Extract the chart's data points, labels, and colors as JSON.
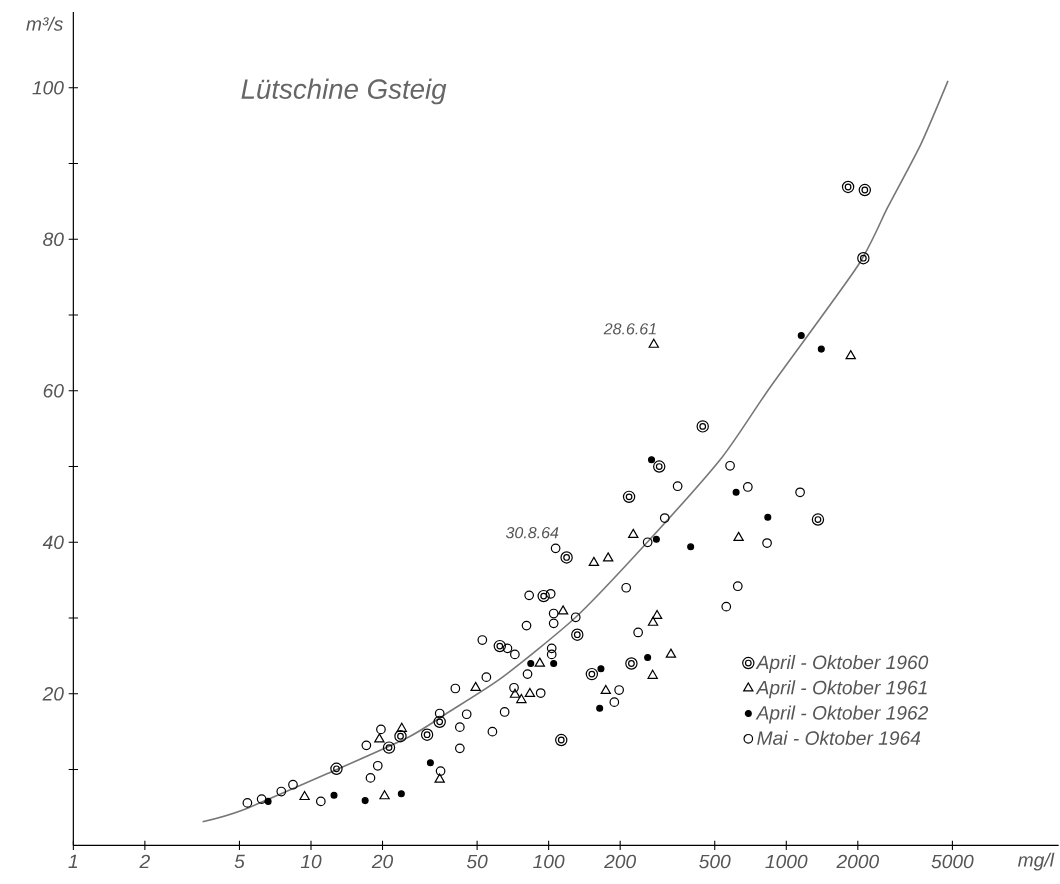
{
  "chart_data": {
    "type": "scatter",
    "title": "Lütschine  Gsteig",
    "xlabel": "mg/l",
    "ylabel": "m³/s",
    "log": "x",
    "xlim": [
      1,
      14000
    ],
    "ylim": [
      0,
      110
    ],
    "xticks": [
      1,
      2,
      5,
      10,
      20,
      50,
      100,
      200,
      500,
      1000,
      2000,
      5000
    ],
    "yticks": [
      {
        "value": 10,
        "label": null
      },
      20,
      {
        "value": 30,
        "label": null
      },
      40,
      {
        "value": 50,
        "label": null
      },
      60,
      {
        "value": 70,
        "label": null
      },
      80,
      {
        "value": 90,
        "label": null
      },
      100
    ],
    "legend": "bottom right",
    "annotations": [
      {
        "text": "30.8.64",
        "x": 107,
        "y": 39.2
      },
      {
        "text": "28.6.61",
        "x": 277,
        "y": 66.1
      }
    ],
    "series": [
      {
        "name": "April - Oktober  1960",
        "color": "#000000",
        "x": [
          12.8,
          21.3,
          23.8,
          30.8,
          34.8,
          62.3,
          95.3,
          119,
          132,
          113,
          152,
          218,
          223,
          292,
          445,
          1359,
          2110,
          1820,
          2140
        ],
        "values": [
          10.1,
          12.9,
          14.4,
          14.6,
          16.3,
          26.3,
          32.9,
          38.0,
          27.8,
          13.9,
          22.6,
          46.0,
          24.0,
          50.0,
          55.3,
          43.0,
          77.5,
          86.9,
          86.5
        ]
      },
      {
        "name": "April - Oktober  1961",
        "color": "#000000",
        "x": [
          9.4,
          19.4,
          20.4,
          24.1,
          34.8,
          49.3,
          72.2,
          76.8,
          83.4,
          91.8,
          115,
          155,
          178,
          174,
          227,
          275,
          286,
          274,
          327,
          630,
          277,
          1867
        ],
        "values": [
          6.4,
          14.0,
          6.5,
          15.4,
          8.7,
          20.8,
          19.9,
          19.2,
          20.0,
          24.0,
          30.9,
          37.3,
          37.9,
          20.4,
          41.0,
          29.4,
          30.3,
          22.4,
          25.2,
          40.6,
          66.1,
          64.6
        ]
      },
      {
        "name": "April - Oktober  1962",
        "color": "#000000",
        "x": [
          6.6,
          12.5,
          16.9,
          24.0,
          31.8,
          84.1,
          105,
          164,
          166,
          261,
          271,
          284,
          396,
          615,
          836,
          1156,
          1404
        ],
        "values": [
          5.8,
          6.6,
          5.9,
          6.8,
          10.9,
          24.0,
          24.0,
          18.1,
          23.3,
          24.8,
          50.9,
          40.4,
          39.4,
          46.6,
          43.3,
          67.3,
          65.5
        ]
      },
      {
        "name": "Mai - Oktober  1964",
        "color": "#000000",
        "x": [
          5.4,
          6.2,
          7.5,
          8.4,
          11.0,
          17.1,
          17.8,
          19.1,
          19.7,
          34.8,
          35.1,
          40.5,
          42.3,
          42.3,
          45.2,
          54.7,
          58.0,
          52.6,
          65.3,
          67.1,
          72.1,
          71.5,
          80.7,
          81.5,
          82.8,
          92.6,
          102,
          103,
          103,
          105,
          105,
          107,
          130,
          189,
          198,
          212,
          238,
          261,
          308,
          349,
          559,
          580,
          625,
          689,
          830,
          1143
        ],
        "values": [
          5.6,
          6.1,
          7.1,
          8.0,
          5.8,
          13.2,
          8.9,
          10.5,
          15.3,
          17.4,
          9.8,
          20.7,
          15.6,
          12.8,
          17.3,
          22.2,
          15.0,
          27.1,
          17.6,
          26.0,
          25.2,
          20.8,
          29.0,
          22.6,
          33.0,
          20.1,
          33.2,
          26.0,
          25.2,
          30.6,
          29.3,
          39.2,
          30.1,
          18.9,
          20.5,
          34.0,
          28.1,
          40.0,
          43.2,
          47.4,
          31.5,
          50.1,
          34.2,
          47.3,
          39.9,
          46.6
        ]
      },
      {
        "type": "line",
        "color": "#777777",
        "x": [
          3.5,
          5.1,
          11.8,
          25.8,
          38,
          64,
          130,
          260,
          536,
          857,
          2000,
          2670,
          3690,
          4790
        ],
        "values": [
          3.1,
          4.6,
          9.5,
          14.3,
          17.6,
          22.2,
          30.1,
          40,
          51.2,
          60.5,
          76.5,
          84.2,
          92.6,
          100.9
        ]
      }
    ]
  }
}
